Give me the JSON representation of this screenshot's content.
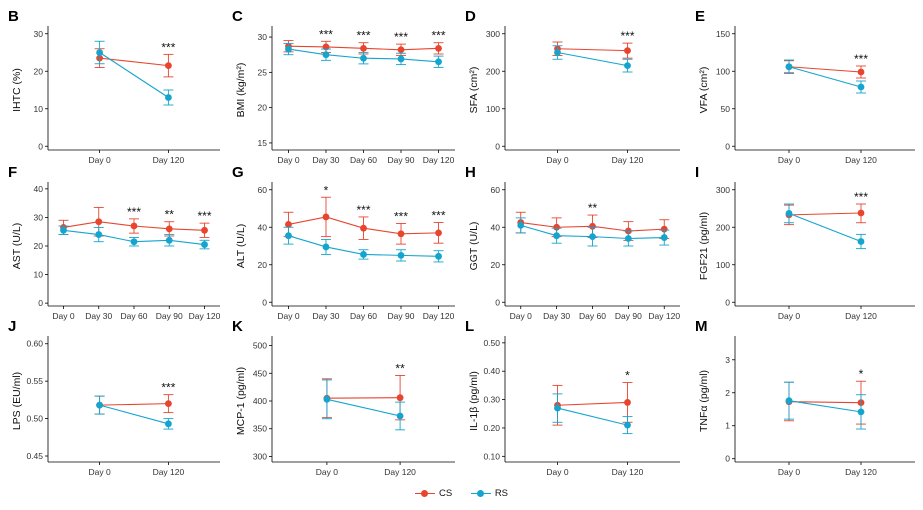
{
  "colors": {
    "CS": "#e8452f",
    "RS": "#14a5cf",
    "axis": "#000000"
  },
  "legend": [
    {
      "key": "CS",
      "label": "CS"
    },
    {
      "key": "RS",
      "label": "RS"
    }
  ],
  "chart_data": [
    {
      "id": "B",
      "type": "line",
      "ylabel": "IHTC (%)",
      "categories": [
        "Day 0",
        "Day 120"
      ],
      "ylim": [
        -1,
        31
      ],
      "yticks": [
        0,
        10,
        20,
        30
      ],
      "series": [
        {
          "name": "CS",
          "values": [
            23.5,
            21.5
          ],
          "err_low": [
            21,
            18.5
          ],
          "err_high": [
            26,
            24.5
          ]
        },
        {
          "name": "RS",
          "values": [
            25,
            13
          ],
          "err_low": [
            22,
            11
          ],
          "err_high": [
            28,
            15
          ]
        }
      ],
      "annotations": [
        {
          "category": "Day 120",
          "text": "***"
        }
      ]
    },
    {
      "id": "C",
      "type": "line",
      "ylabel": "BMI (kg/m²)",
      "categories": [
        "Day 0",
        "Day 30",
        "Day 60",
        "Day 90",
        "Day 120"
      ],
      "ylim": [
        14,
        31
      ],
      "yticks": [
        15,
        20,
        25,
        30
      ],
      "series": [
        {
          "name": "CS",
          "values": [
            28.7,
            28.6,
            28.4,
            28.2,
            28.4
          ],
          "err_low": [
            27.9,
            27.8,
            27.6,
            27.4,
            27.6
          ],
          "err_high": [
            29.5,
            29.4,
            29.2,
            29,
            29.2
          ]
        },
        {
          "name": "RS",
          "values": [
            28.3,
            27.5,
            27,
            26.9,
            26.5
          ],
          "err_low": [
            27.5,
            26.7,
            26.2,
            26.1,
            25.7
          ],
          "err_high": [
            29.1,
            28.3,
            27.8,
            27.7,
            27.3
          ]
        }
      ],
      "annotations": [
        {
          "category": "Day 30",
          "text": "***"
        },
        {
          "category": "Day 60",
          "text": "***"
        },
        {
          "category": "Day 90",
          "text": "***"
        },
        {
          "category": "Day 120",
          "text": "***"
        }
      ]
    },
    {
      "id": "D",
      "type": "line",
      "ylabel": "SFA (cm²)",
      "categories": [
        "Day 0",
        "Day 120"
      ],
      "ylim": [
        -10,
        310
      ],
      "yticks": [
        0,
        100,
        200,
        300
      ],
      "series": [
        {
          "name": "CS",
          "values": [
            260,
            255
          ],
          "err_low": [
            242,
            235
          ],
          "err_high": [
            278,
            275
          ]
        },
        {
          "name": "RS",
          "values": [
            250,
            215
          ],
          "err_low": [
            232,
            198
          ],
          "err_high": [
            268,
            232
          ]
        }
      ],
      "annotations": [
        {
          "category": "Day 120",
          "text": "***"
        }
      ]
    },
    {
      "id": "E",
      "type": "line",
      "ylabel": "VFA (cm²)",
      "categories": [
        "Day 0",
        "Day 120"
      ],
      "ylim": [
        -5,
        155
      ],
      "yticks": [
        0,
        50,
        100,
        150
      ],
      "series": [
        {
          "name": "CS",
          "values": [
            106,
            99
          ],
          "err_low": [
            98,
            91
          ],
          "err_high": [
            114,
            107
          ]
        },
        {
          "name": "RS",
          "values": [
            106,
            79
          ],
          "err_low": [
            97,
            71
          ],
          "err_high": [
            115,
            87
          ]
        }
      ],
      "annotations": [
        {
          "category": "Day 120",
          "text": "***"
        }
      ]
    },
    {
      "id": "F",
      "type": "line",
      "ylabel": "AST (U/L)",
      "categories": [
        "Day 0",
        "Day 30",
        "Day 60",
        "Day 90",
        "Day 120"
      ],
      "ylim": [
        -1,
        41
      ],
      "yticks": [
        0,
        10,
        20,
        30,
        40
      ],
      "series": [
        {
          "name": "CS",
          "values": [
            26.5,
            28.5,
            27,
            26,
            25.5
          ],
          "err_low": [
            24,
            23.5,
            24.5,
            23.5,
            23
          ],
          "err_high": [
            29,
            33.5,
            29.5,
            28.5,
            28
          ]
        },
        {
          "name": "RS",
          "values": [
            25.5,
            24,
            21.5,
            22,
            20.5
          ],
          "err_low": [
            24,
            21.5,
            20,
            20,
            19
          ],
          "err_high": [
            27,
            26.5,
            23,
            24,
            22
          ]
        }
      ],
      "annotations": [
        {
          "category": "Day 60",
          "text": "***"
        },
        {
          "category": "Day 90",
          "text": "**"
        },
        {
          "category": "Day 120",
          "text": "***"
        }
      ]
    },
    {
      "id": "G",
      "type": "line",
      "ylabel": "ALT (U/L)",
      "categories": [
        "Day 0",
        "Day 30",
        "Day 60",
        "Day 90",
        "Day 120"
      ],
      "ylim": [
        -2,
        62
      ],
      "yticks": [
        0,
        20,
        40,
        60
      ],
      "series": [
        {
          "name": "CS",
          "values": [
            41.5,
            45.5,
            39.5,
            36.5,
            37
          ],
          "err_low": [
            35,
            35,
            33.5,
            31,
            31.5
          ],
          "err_high": [
            48,
            56,
            45.5,
            42,
            42.5
          ]
        },
        {
          "name": "RS",
          "values": [
            35.5,
            29.5,
            25.5,
            25,
            24.5
          ],
          "err_low": [
            31,
            25.5,
            23,
            22,
            21.5
          ],
          "err_high": [
            40,
            33.5,
            28,
            28,
            27.5
          ]
        }
      ],
      "annotations": [
        {
          "category": "Day 30",
          "text": "*"
        },
        {
          "category": "Day 60",
          "text": "***"
        },
        {
          "category": "Day 90",
          "text": "***"
        },
        {
          "category": "Day 120",
          "text": "***"
        }
      ]
    },
    {
      "id": "H",
      "type": "line",
      "ylabel": "GGT (U/L)",
      "categories": [
        "Day 0",
        "Day 30",
        "Day 60",
        "Day 90",
        "Day 120"
      ],
      "ylim": [
        -2,
        62
      ],
      "yticks": [
        0,
        20,
        40,
        60
      ],
      "series": [
        {
          "name": "CS",
          "values": [
            42.5,
            40,
            40.5,
            38,
            39
          ],
          "err_low": [
            37,
            35,
            34.5,
            33,
            34
          ],
          "err_high": [
            48,
            45,
            46.5,
            43,
            44
          ]
        },
        {
          "name": "RS",
          "values": [
            41,
            35.5,
            35,
            34,
            34.5
          ],
          "err_low": [
            37,
            31.5,
            30,
            30,
            30.5
          ],
          "err_high": [
            45,
            39.5,
            40,
            38,
            38.5
          ]
        }
      ],
      "annotations": [
        {
          "category": "Day 60",
          "text": "**"
        }
      ]
    },
    {
      "id": "I",
      "type": "line",
      "ylabel": "FGF21 (pg/ml)",
      "categories": [
        "Day 0",
        "Day 120"
      ],
      "ylim": [
        -10,
        310
      ],
      "yticks": [
        0,
        100,
        200,
        300
      ],
      "series": [
        {
          "name": "CS",
          "values": [
            233,
            238
          ],
          "err_low": [
            207,
            212
          ],
          "err_high": [
            259,
            262
          ]
        },
        {
          "name": "RS",
          "values": [
            237,
            162
          ],
          "err_low": [
            212,
            143
          ],
          "err_high": [
            262,
            181
          ]
        }
      ],
      "annotations": [
        {
          "category": "Day 120",
          "text": "***"
        }
      ]
    },
    {
      "id": "J",
      "type": "line",
      "ylabel": "LPS (EU/ml)",
      "categories": [
        "Day 0",
        "Day 120"
      ],
      "ylim": [
        0.442,
        0.605
      ],
      "yticks": [
        0.45,
        0.5,
        0.55,
        0.6
      ],
      "series": [
        {
          "name": "CS",
          "values": [
            0.518,
            0.52
          ],
          "err_low": [
            0.506,
            0.508
          ],
          "err_high": [
            0.53,
            0.532
          ]
        },
        {
          "name": "RS",
          "values": [
            0.518,
            0.493
          ],
          "err_low": [
            0.506,
            0.486
          ],
          "err_high": [
            0.53,
            0.5
          ]
        }
      ],
      "annotations": [
        {
          "category": "Day 120",
          "text": "***"
        }
      ]
    },
    {
      "id": "K",
      "type": "line",
      "ylabel": "MCP-1 (pg/ml)",
      "categories": [
        "Day 0",
        "Day 120"
      ],
      "ylim": [
        290,
        510
      ],
      "yticks": [
        300,
        350,
        400,
        450,
        500
      ],
      "series": [
        {
          "name": "CS",
          "values": [
            405,
            406
          ],
          "err_low": [
            370,
            366
          ],
          "err_high": [
            440,
            446
          ]
        },
        {
          "name": "RS",
          "values": [
            403,
            373
          ],
          "err_low": [
            368,
            348
          ],
          "err_high": [
            438,
            398
          ]
        }
      ],
      "annotations": [
        {
          "category": "Day 120",
          "text": "**"
        }
      ]
    },
    {
      "id": "L",
      "type": "line",
      "ylabel": "IL-1β (pg/ml)",
      "categories": [
        "Day 0",
        "Day 120"
      ],
      "ylim": [
        0.08,
        0.51
      ],
      "yticks": [
        0.1,
        0.2,
        0.3,
        0.4,
        0.5
      ],
      "series": [
        {
          "name": "CS",
          "values": [
            0.28,
            0.29
          ],
          "err_low": [
            0.21,
            0.22
          ],
          "err_high": [
            0.35,
            0.36
          ]
        },
        {
          "name": "RS",
          "values": [
            0.27,
            0.21
          ],
          "err_low": [
            0.22,
            0.18
          ],
          "err_high": [
            0.32,
            0.24
          ]
        }
      ],
      "annotations": [
        {
          "category": "Day 120",
          "text": "*"
        }
      ]
    },
    {
      "id": "M",
      "type": "line",
      "ylabel": "TNFα (pg/ml)",
      "categories": [
        "Day 0",
        "Day 120"
      ],
      "ylim": [
        -0.1,
        3.6
      ],
      "yticks": [
        0,
        1,
        2,
        3
      ],
      "series": [
        {
          "name": "CS",
          "values": [
            1.73,
            1.7
          ],
          "err_low": [
            1.15,
            1.05
          ],
          "err_high": [
            2.32,
            2.35
          ]
        },
        {
          "name": "RS",
          "values": [
            1.76,
            1.42
          ],
          "err_low": [
            1.2,
            0.9
          ],
          "err_high": [
            2.32,
            1.94
          ]
        }
      ],
      "annotations": [
        {
          "category": "Day 120",
          "text": "*"
        }
      ]
    }
  ]
}
